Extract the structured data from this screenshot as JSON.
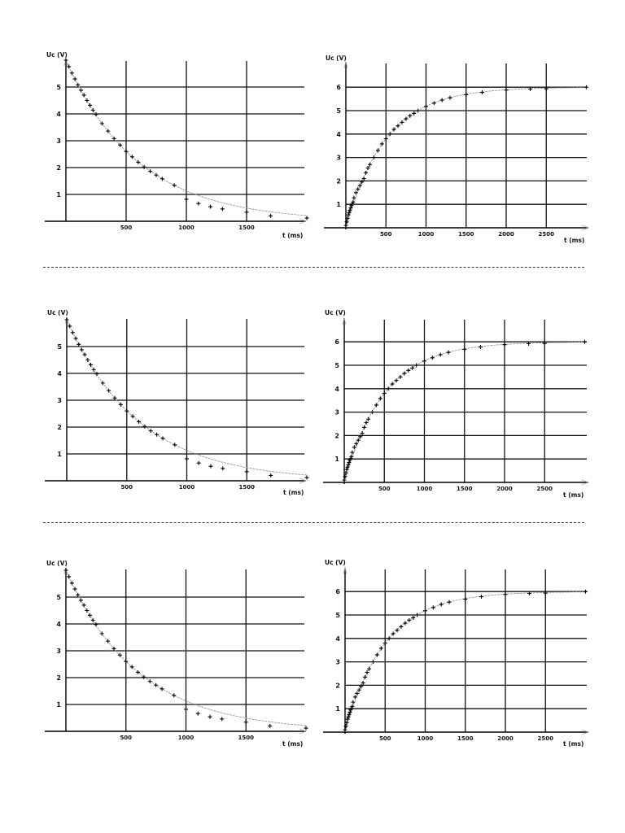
{
  "page": {
    "separators": [
      328,
      642
    ]
  },
  "chart_data": [
    {
      "id": "discharge-1",
      "type": "scatter",
      "title": "",
      "ylabel": "Uc (V)",
      "xlabel": "t  (ms)",
      "xlim": [
        0,
        2000
      ],
      "ylim": [
        0,
        6
      ],
      "xticks": [
        500,
        1000,
        1500
      ],
      "yticks": [
        1,
        2,
        3,
        4,
        5
      ],
      "grid": true,
      "fit": "6*exp(-t/600)",
      "x": [
        0,
        25,
        50,
        75,
        100,
        125,
        150,
        175,
        200,
        225,
        250,
        300,
        350,
        400,
        450,
        500,
        550,
        600,
        650,
        700,
        750,
        800,
        900,
        1000,
        1100,
        1200,
        1300,
        1500,
        1700,
        2000
      ],
      "y": [
        6.0,
        5.76,
        5.52,
        5.3,
        5.08,
        4.88,
        4.7,
        4.5,
        4.32,
        4.14,
        3.98,
        3.64,
        3.36,
        3.08,
        2.84,
        2.6,
        2.4,
        2.2,
        2.02,
        1.86,
        1.72,
        1.58,
        1.34,
        0.82,
        0.66,
        0.54,
        0.46,
        0.34,
        0.2,
        0.12
      ]
    },
    {
      "id": "charge-1",
      "type": "scatter",
      "title": "",
      "ylabel": "Uc (V)",
      "xlabel": "t  (ms)",
      "xlim": [
        0,
        3000
      ],
      "ylim": [
        0,
        7
      ],
      "xticks": [
        500,
        1000,
        1500,
        2000,
        2500
      ],
      "yticks": [
        1,
        2,
        3,
        4,
        5,
        6
      ],
      "grid": true,
      "fit": "6*(1-exp(-t/500))",
      "x": [
        0,
        10,
        20,
        30,
        40,
        50,
        60,
        70,
        80,
        90,
        100,
        125,
        150,
        175,
        200,
        225,
        250,
        275,
        300,
        350,
        400,
        450,
        500,
        550,
        600,
        650,
        700,
        750,
        800,
        850,
        900,
        1000,
        1100,
        1200,
        1300,
        1500,
        1700,
        2000,
        2300,
        2500,
        3000
      ],
      "y": [
        0.1,
        0.25,
        0.4,
        0.55,
        0.65,
        0.75,
        0.85,
        0.95,
        1.02,
        1.1,
        1.28,
        1.5,
        1.65,
        1.8,
        1.95,
        2.1,
        2.35,
        2.55,
        2.7,
        3.0,
        3.3,
        3.58,
        3.8,
        4.0,
        4.2,
        4.35,
        4.5,
        4.65,
        4.78,
        4.88,
        5.0,
        5.18,
        5.32,
        5.45,
        5.55,
        5.68,
        5.78,
        5.88,
        5.92,
        5.93,
        6.0
      ]
    },
    {
      "id": "discharge-2",
      "type": "scatter",
      "title": "",
      "ylabel": "Uc (V)",
      "xlabel": "t  (ms)",
      "xlim": [
        0,
        2000
      ],
      "ylim": [
        0,
        6
      ],
      "xticks": [
        500,
        1000,
        1500
      ],
      "yticks": [
        1,
        2,
        3,
        4,
        5
      ],
      "grid": true,
      "fit": "6*exp(-t/600)",
      "x": [
        0,
        25,
        50,
        75,
        100,
        125,
        150,
        175,
        200,
        225,
        250,
        300,
        350,
        400,
        450,
        500,
        550,
        600,
        650,
        700,
        750,
        800,
        900,
        1000,
        1100,
        1200,
        1300,
        1500,
        1700,
        2000
      ],
      "y": [
        6.0,
        5.76,
        5.52,
        5.3,
        5.08,
        4.88,
        4.7,
        4.5,
        4.32,
        4.14,
        3.98,
        3.64,
        3.36,
        3.08,
        2.84,
        2.6,
        2.4,
        2.2,
        2.02,
        1.86,
        1.72,
        1.58,
        1.34,
        0.82,
        0.66,
        0.54,
        0.46,
        0.34,
        0.2,
        0.12
      ]
    },
    {
      "id": "charge-2",
      "type": "scatter",
      "title": "",
      "ylabel": "Uc (V)",
      "xlabel": "t  (ms)",
      "xlim": [
        0,
        3000
      ],
      "ylim": [
        0,
        7
      ],
      "xticks": [
        500,
        1000,
        1500,
        2000,
        2500
      ],
      "yticks": [
        1,
        2,
        3,
        4,
        5,
        6
      ],
      "grid": true,
      "fit": "6*(1-exp(-t/500))",
      "x": [
        0,
        10,
        20,
        30,
        40,
        50,
        60,
        70,
        80,
        90,
        100,
        125,
        150,
        175,
        200,
        225,
        250,
        275,
        300,
        350,
        400,
        450,
        500,
        550,
        600,
        650,
        700,
        750,
        800,
        850,
        900,
        1000,
        1100,
        1200,
        1300,
        1500,
        1700,
        2000,
        2300,
        2500,
        3000
      ],
      "y": [
        0.1,
        0.25,
        0.4,
        0.55,
        0.65,
        0.75,
        0.85,
        0.95,
        1.02,
        1.1,
        1.28,
        1.5,
        1.65,
        1.8,
        1.95,
        2.1,
        2.35,
        2.55,
        2.7,
        3.0,
        3.3,
        3.58,
        3.8,
        4.0,
        4.2,
        4.35,
        4.5,
        4.65,
        4.78,
        4.88,
        5.0,
        5.18,
        5.32,
        5.45,
        5.55,
        5.68,
        5.78,
        5.88,
        5.92,
        5.93,
        6.0
      ]
    },
    {
      "id": "discharge-3",
      "type": "scatter",
      "title": "",
      "ylabel": "Uc (V)",
      "xlabel": "t  (ms)",
      "xlim": [
        0,
        2000
      ],
      "ylim": [
        0,
        6
      ],
      "xticks": [
        500,
        1000,
        1500
      ],
      "yticks": [
        1,
        2,
        3,
        4,
        5
      ],
      "grid": true,
      "fit": "6*exp(-t/600)",
      "x": [
        0,
        25,
        50,
        75,
        100,
        125,
        150,
        175,
        200,
        225,
        250,
        300,
        350,
        400,
        450,
        500,
        550,
        600,
        650,
        700,
        750,
        800,
        900,
        1000,
        1100,
        1200,
        1300,
        1500,
        1700,
        2000
      ],
      "y": [
        6.0,
        5.76,
        5.52,
        5.3,
        5.08,
        4.88,
        4.7,
        4.5,
        4.32,
        4.14,
        3.98,
        3.64,
        3.36,
        3.08,
        2.84,
        2.6,
        2.4,
        2.2,
        2.02,
        1.86,
        1.72,
        1.58,
        1.34,
        0.82,
        0.66,
        0.54,
        0.46,
        0.34,
        0.2,
        0.12
      ]
    },
    {
      "id": "charge-3",
      "type": "scatter",
      "title": "",
      "ylabel": "Uc (V)",
      "xlabel": "t  (ms)",
      "xlim": [
        0,
        3000
      ],
      "ylim": [
        0,
        7
      ],
      "xticks": [
        500,
        1000,
        1500,
        2000,
        2500
      ],
      "yticks": [
        1,
        2,
        3,
        4,
        5,
        6
      ],
      "grid": true,
      "fit": "6*(1-exp(-t/500))",
      "x": [
        0,
        10,
        20,
        30,
        40,
        50,
        60,
        70,
        80,
        90,
        100,
        125,
        150,
        175,
        200,
        225,
        250,
        275,
        300,
        350,
        400,
        450,
        500,
        550,
        600,
        650,
        700,
        750,
        800,
        850,
        900,
        1000,
        1100,
        1200,
        1300,
        1500,
        1700,
        2000,
        2300,
        2500,
        3000
      ],
      "y": [
        0.1,
        0.25,
        0.4,
        0.55,
        0.65,
        0.75,
        0.85,
        0.95,
        1.02,
        1.1,
        1.28,
        1.5,
        1.65,
        1.8,
        1.95,
        2.1,
        2.35,
        2.55,
        2.7,
        3.0,
        3.3,
        3.58,
        3.8,
        4.0,
        4.2,
        4.35,
        4.5,
        4.65,
        4.78,
        4.88,
        5.0,
        5.18,
        5.32,
        5.45,
        5.55,
        5.68,
        5.78,
        5.88,
        5.92,
        5.93,
        6.0
      ]
    }
  ]
}
